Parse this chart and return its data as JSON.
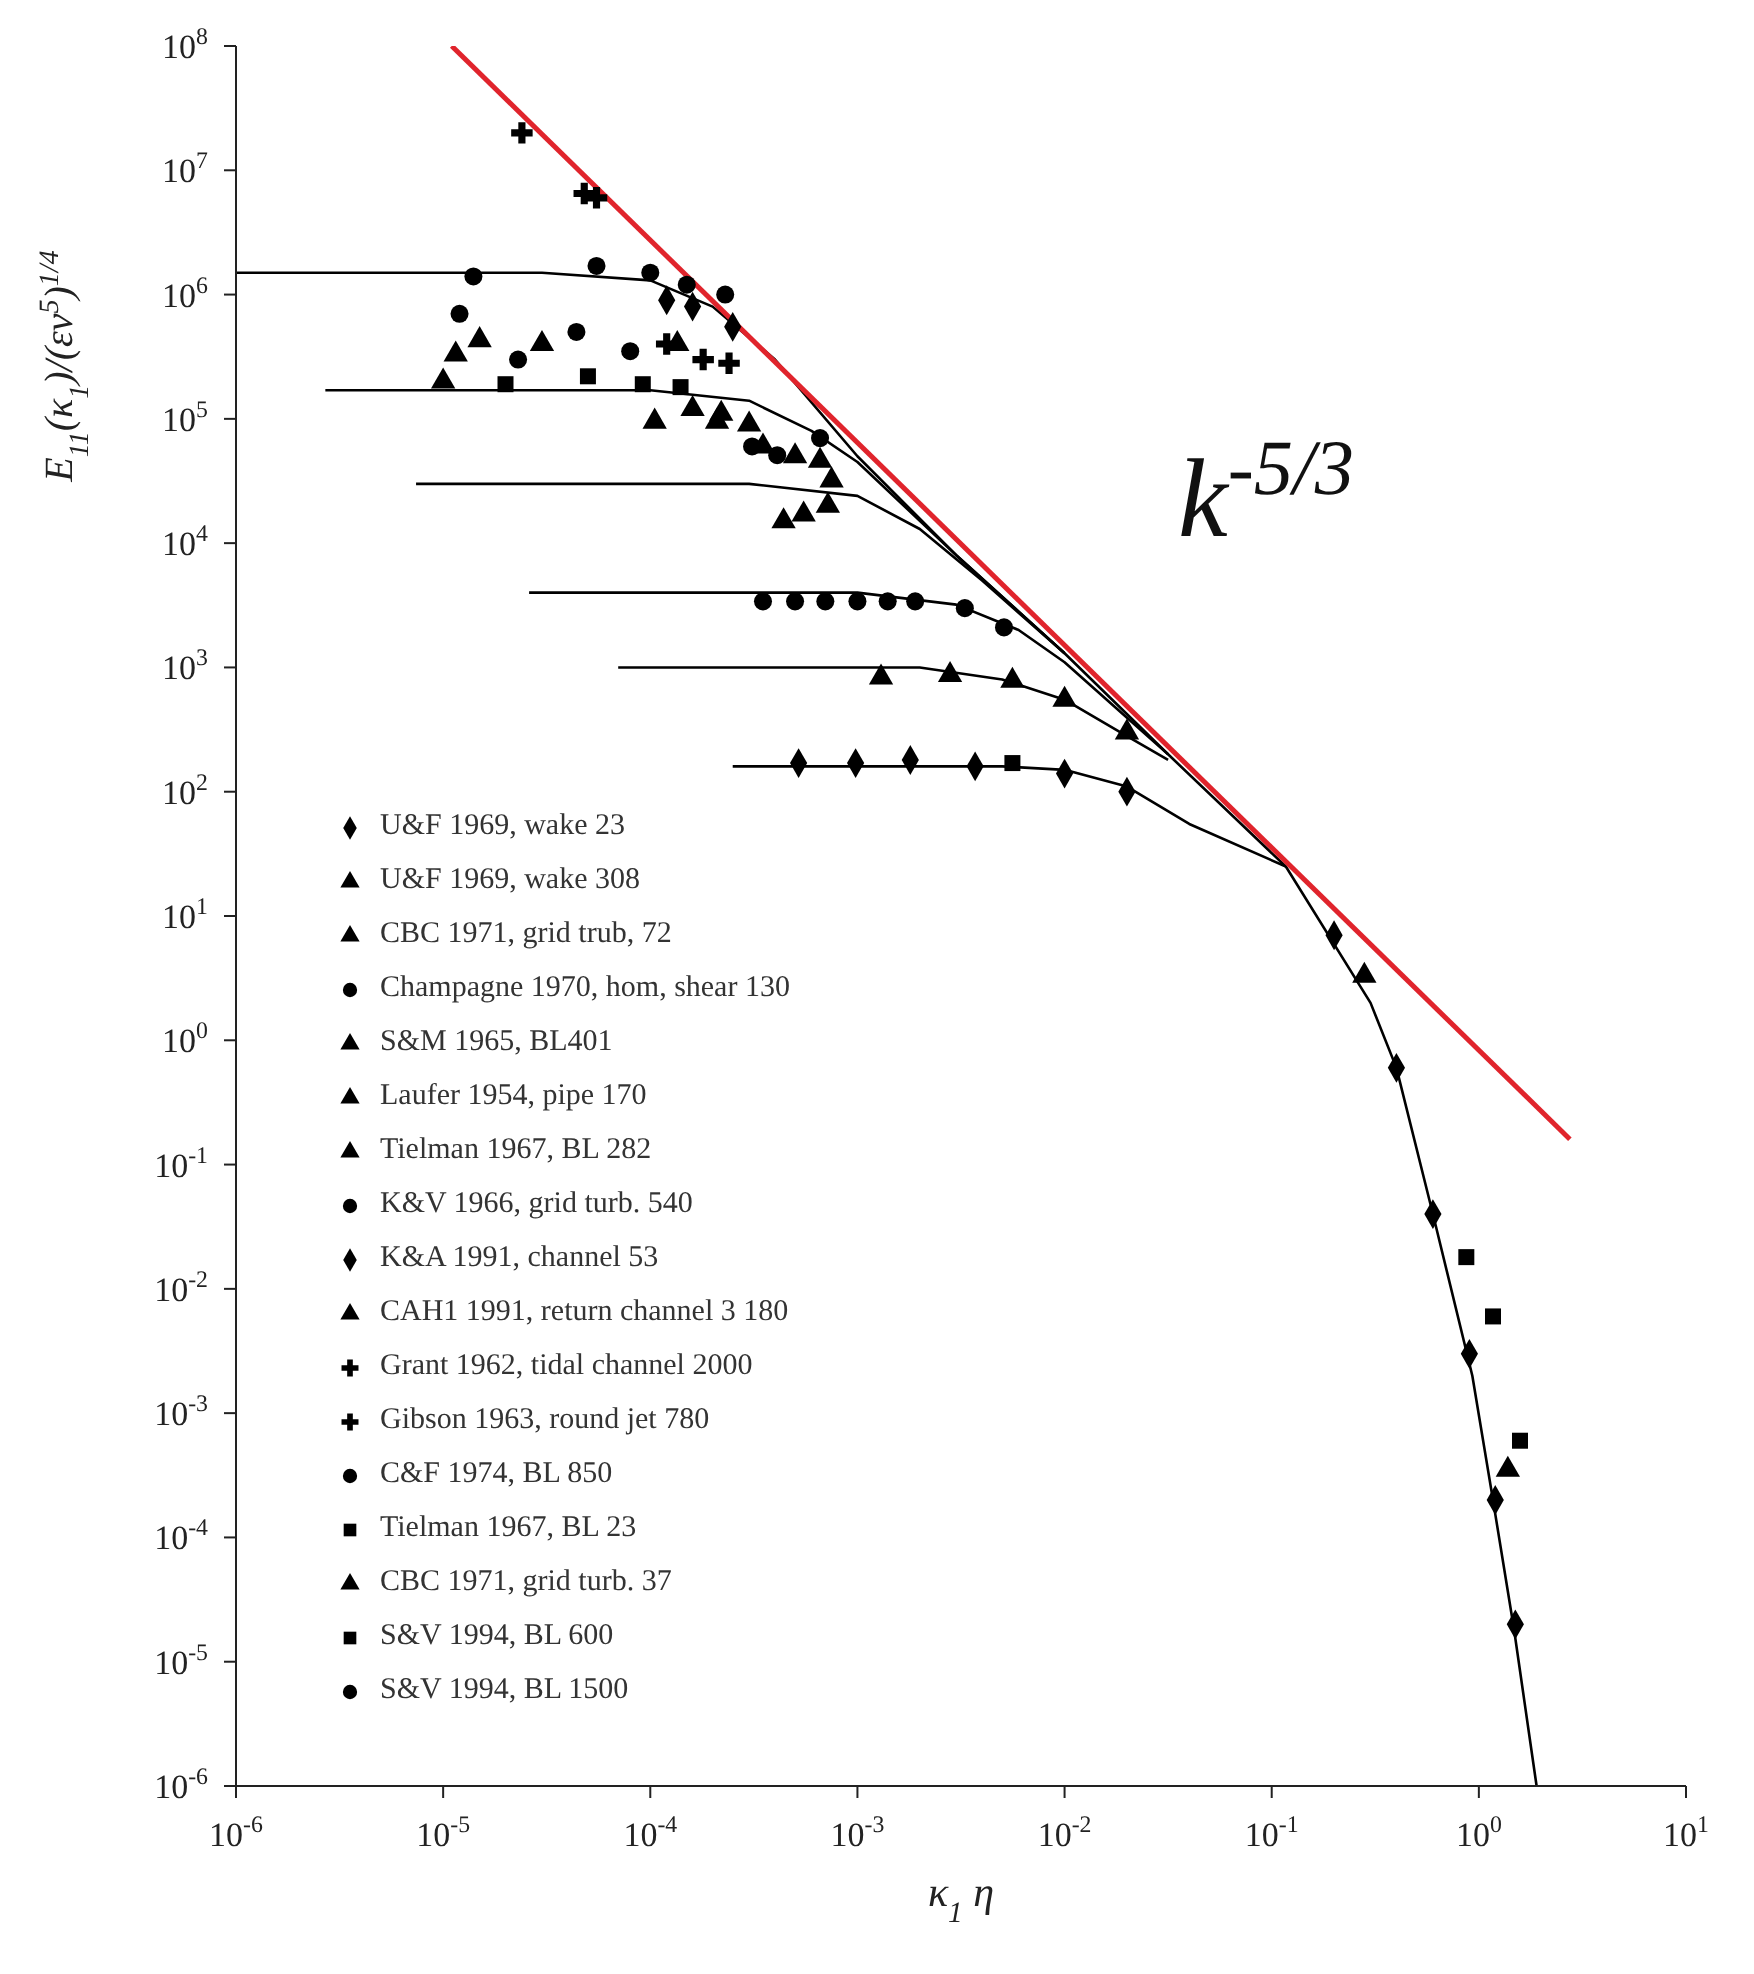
{
  "chart_data": {
    "type": "scatter",
    "xlabel": "κ$_{1}$ η",
    "ylabel": "E$_{11}$(κ$_{1}$)/(εν$^{5}$)$^{1/4}$",
    "log": "xy",
    "legend": "bottom left",
    "xlim": [
      1e-06,
      10
    ],
    "ylim": [
      1e-06,
      100000000.0
    ],
    "xticks": [
      {
        "value": 1e-06,
        "label": "10$^{-6}$"
      },
      {
        "value": 1e-05,
        "label": "10$^{-5}$"
      },
      {
        "value": 0.0001,
        "label": "10$^{-4}$"
      },
      {
        "value": 0.001,
        "label": "10$^{-3}$"
      },
      {
        "value": 0.01,
        "label": "10$^{-2}$"
      },
      {
        "value": 0.1,
        "label": "10$^{-1}$"
      },
      {
        "value": 1,
        "label": "10$^{0}$"
      },
      {
        "value": 10,
        "label": "10$^{1}$"
      }
    ],
    "yticks": [
      {
        "value": 1e-06,
        "label": "10$^{-6}$"
      },
      {
        "value": 1e-05,
        "label": "10$^{-5}$"
      },
      {
        "value": 0.0001,
        "label": "10$^{-4}$"
      },
      {
        "value": 0.001,
        "label": "10$^{-3}$"
      },
      {
        "value": 0.01,
        "label": "10$^{-2}$"
      },
      {
        "value": 0.1,
        "label": "10$^{-1}$"
      },
      {
        "value": 1,
        "label": "10$^{0}$"
      },
      {
        "value": 10,
        "label": "10$^{1}$"
      },
      {
        "value": 100,
        "label": "10$^{2}$"
      },
      {
        "value": 1000,
        "label": "10$^{3}$"
      },
      {
        "value": 10000.0,
        "label": "10$^{4}$"
      },
      {
        "value": 100000.0,
        "label": "10$^{5}$"
      },
      {
        "value": 1000000.0,
        "label": "10$^{6}$"
      },
      {
        "value": 10000000.0,
        "label": "10$^{7}$"
      },
      {
        "value": 100000000.0,
        "label": "10$^{8}$"
      }
    ],
    "annotations": [
      "k$^{-5/3}$"
    ],
    "series": [
      {
        "type": "line",
        "color": "#000000",
        "marker": "none",
        "x": [
          1e-06,
          3e-05,
          0.0001,
          0.0002,
          0.0004,
          0.001,
          0.003,
          0.01,
          0.0316,
          0.117,
          0.3,
          0.4,
          0.6,
          0.93,
          1.17,
          1.48,
          1.9
        ],
        "values": [
          1500000.0,
          1500000.0,
          1300000.0,
          800000.0,
          300000.0,
          50000.0,
          8000.0,
          1300,
          200,
          25,
          2,
          0.6,
          0.04,
          0.002,
          0.0002,
          1.8e-05,
          1e-06
        ]
      },
      {
        "type": "line",
        "color": "#000000",
        "marker": "none",
        "x": [
          2.7e-06,
          0.0001,
          0.0003,
          0.0006,
          0.001,
          0.003,
          0.01
        ],
        "values": [
          170000.0,
          170000.0,
          140000.0,
          80000.0,
          45000.0,
          8000.0,
          1300
        ]
      },
      {
        "type": "line",
        "color": "#000000",
        "marker": "none",
        "x": [
          7.4e-06,
          0.0003,
          0.001,
          0.002,
          0.004,
          0.01
        ],
        "values": [
          30000.0,
          30000.0,
          24000.0,
          13000.0,
          5000.0,
          1300
        ]
      },
      {
        "type": "line",
        "color": "#000000",
        "marker": "none",
        "x": [
          2.6e-05,
          0.001,
          0.003,
          0.006,
          0.01,
          0.0316
        ],
        "values": [
          4000,
          4000,
          3200,
          2000,
          1100,
          200
        ]
      },
      {
        "type": "line",
        "color": "#000000",
        "marker": "none",
        "x": [
          7e-05,
          0.002,
          0.005,
          0.01,
          0.02,
          0.0316
        ],
        "values": [
          1000,
          1000,
          800,
          550,
          280,
          180
        ]
      },
      {
        "type": "line",
        "color": "#000000",
        "marker": "none",
        "x": [
          0.00025,
          0.005,
          0.01,
          0.02,
          0.04,
          0.117
        ],
        "values": [
          160,
          160,
          150,
          110,
          55,
          25
        ]
      },
      {
        "type": "line",
        "color": "#e0242c",
        "marker": "none",
        "x": [
          1.1e-05,
          2.75
        ],
        "values": [
          100000000.0,
          0.16
        ]
      },
      {
        "name": "U&F 1969, wake 23",
        "color": "#000000",
        "marker": "diamond",
        "x": [
          0.00052,
          0.00098,
          0.0018,
          0.0037,
          0.01,
          0.02
        ],
        "values": [
          170,
          170,
          180,
          160,
          140,
          100
        ]
      },
      {
        "name": "U&F 1969, wake 308",
        "color": "#000000",
        "marker": "triangle",
        "x": [
          0.000105,
          0.00021,
          0.00035,
          0.0005
        ],
        "values": [
          95000,
          95000,
          60000,
          50000
        ]
      },
      {
        "name": "CBC 1971, grid trub, 72",
        "color": "#000000",
        "marker": "triangle",
        "x": [
          0.0013,
          0.0028,
          0.0056,
          0.01,
          0.02
        ],
        "values": [
          830,
          870,
          780,
          550,
          300
        ]
      },
      {
        "name": "Champagne 1970, hom, shear 130",
        "color": "#000000",
        "marker": "circle",
        "x": [
          0.00035,
          0.0005,
          0.0007,
          0.001,
          0.0014,
          0.0019,
          0.0033,
          0.0051
        ],
        "values": [
          3400,
          3400,
          3400,
          3400,
          3400,
          3400,
          3000,
          2100
        ]
      },
      {
        "name": "S&M 1965, BL401",
        "color": "#000000",
        "marker": "triangle",
        "x": [
          0.000135,
          0.00066,
          0.00075
        ],
        "values": [
          400000,
          46000,
          32000
        ]
      },
      {
        "name": "Laufer 1954, pipe 170",
        "color": "#000000",
        "marker": "triangle",
        "x": [
          0.00044,
          0.00055,
          0.00072
        ],
        "values": [
          15000,
          17000,
          20000
        ]
      },
      {
        "name": "Tielman 1967, BL 282",
        "color": "#000000",
        "marker": "triangle",
        "x": [
          0.00016,
          0.00022,
          0.0003
        ],
        "values": [
          120000,
          110000,
          90000
        ]
      },
      {
        "name": "K&V 1966, grid turb. 540",
        "color": "#000000",
        "marker": "circle",
        "x": [
          0.00031,
          0.00041,
          0.00066
        ],
        "values": [
          60000,
          51000,
          70000
        ]
      },
      {
        "name": "K&A 1991, channel 53",
        "color": "#000000",
        "marker": "diamond",
        "x": [
          0.00012,
          0.00016,
          0.00025,
          0.2,
          0.4,
          0.6,
          0.9,
          1.2,
          1.5
        ],
        "values": [
          900000,
          800000,
          550000,
          7,
          0.6,
          0.04,
          0.003,
          0.0002,
          2e-05
        ]
      },
      {
        "name": "CAH1 1991, return channel 3 180",
        "color": "#000000",
        "marker": "triangle",
        "x": [
          1e-05,
          1.15e-05,
          1.5e-05,
          3e-05
        ],
        "values": [
          200000,
          330000,
          430000,
          400000
        ]
      },
      {
        "name": "Grant 1962, tidal channel 2000",
        "color": "#000000",
        "marker": "cross",
        "x": [
          2.4e-05,
          4.8e-05,
          5.5e-05
        ],
        "values": [
          20000000,
          6500000,
          6000000
        ]
      },
      {
        "name": "Gibson 1963, round jet 780",
        "color": "#000000",
        "marker": "cross",
        "x": [
          0.00012,
          0.00018,
          0.00024
        ],
        "values": [
          400000,
          300000,
          280000
        ]
      },
      {
        "name": "C&F 1974, BL 850",
        "color": "#000000",
        "marker": "circle",
        "x": [
          1.2e-05,
          2.3e-05,
          4.4e-05,
          8e-05
        ],
        "values": [
          700000,
          300000,
          500000,
          350000
        ]
      },
      {
        "name": "Tielman 1967, BL 23",
        "color": "#000000",
        "marker": "square",
        "x": [
          0.0056,
          0.87,
          1.17,
          1.58
        ],
        "values": [
          170,
          0.018,
          0.006,
          0.0006
        ]
      },
      {
        "name": "CBC 1971, grid turb. 37",
        "color": "#000000",
        "marker": "triangle",
        "x": [
          0.28,
          1.38
        ],
        "values": [
          3.3,
          0.00035
        ]
      },
      {
        "name": "S&V 1994, BL 600",
        "color": "#000000",
        "marker": "square",
        "x": [
          2e-05,
          5e-05,
          9.2e-05,
          0.00014
        ],
        "values": [
          190000,
          220000,
          190000,
          180000
        ]
      },
      {
        "name": "S&V 1994, BL 1500",
        "color": "#000000",
        "marker": "circle",
        "x": [
          1.4e-05,
          5.5e-05,
          0.0001,
          0.00015,
          0.00023
        ],
        "values": [
          1400000,
          1700000,
          1500000,
          1200000,
          1000000
        ]
      }
    ]
  }
}
